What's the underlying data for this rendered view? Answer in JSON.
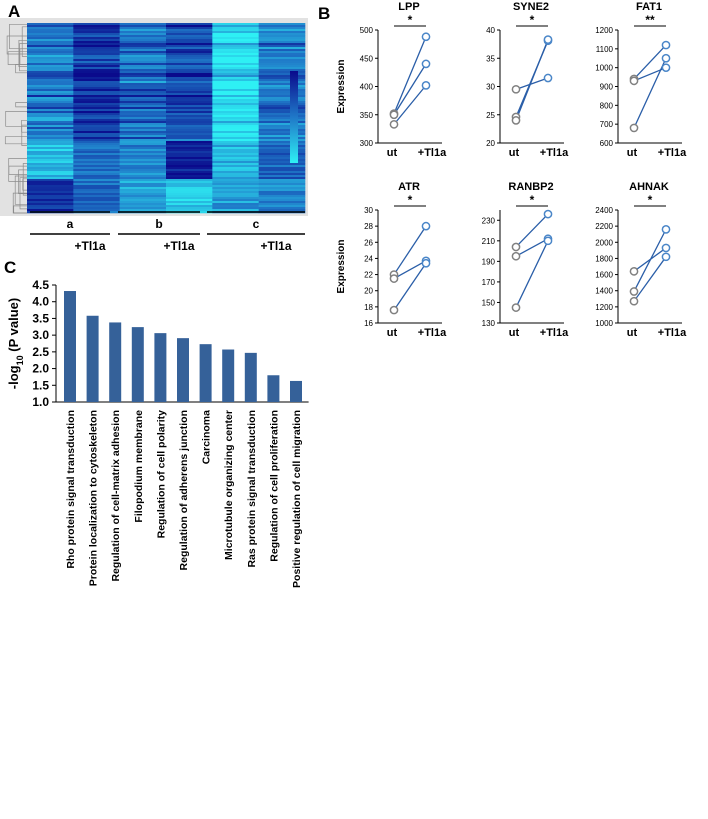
{
  "panels": {
    "a": "A",
    "b": "B",
    "c": "C"
  },
  "colors": {
    "open": "#808080",
    "treated": "#4a86c8",
    "line": "#2a5ea8",
    "bar": "#356199",
    "heat_low": "#2ef0f4",
    "heat_high": "#0a0a8c",
    "tree": "#8c8c8c"
  },
  "heatmap": {
    "groups": [
      {
        "label": "a",
        "treatment": "+Tl1a"
      },
      {
        "label": "b",
        "treatment": "+Tl1a"
      },
      {
        "label": "c",
        "treatment": "+Tl1a"
      }
    ]
  },
  "chart_data": [
    {
      "type": "line",
      "panel": "B",
      "title": "LPP",
      "ylabel": "Expression",
      "categories": [
        "ut",
        "+Tl1a"
      ],
      "ylim": [
        300,
        500
      ],
      "yticks": [
        300,
        350,
        400,
        450,
        500
      ],
      "significance": "*",
      "pairs": [
        [
          352,
          488
        ],
        [
          350,
          440
        ],
        [
          333,
          402
        ]
      ]
    },
    {
      "type": "line",
      "panel": "B",
      "title": "SYNE2",
      "ylabel": "",
      "categories": [
        "ut",
        "+Tl1a"
      ],
      "ylim": [
        20,
        40
      ],
      "yticks": [
        20,
        25,
        30,
        35,
        40
      ],
      "significance": "*",
      "pairs": [
        [
          29.5,
          31.5
        ],
        [
          24.6,
          38.1
        ],
        [
          24.0,
          38.3
        ]
      ]
    },
    {
      "type": "line",
      "panel": "B",
      "title": "FAT1",
      "ylabel": "",
      "categories": [
        "ut",
        "+Tl1a"
      ],
      "ylim": [
        600,
        1200
      ],
      "yticks": [
        600,
        700,
        800,
        900,
        1000,
        1100,
        1200
      ],
      "significance": "**",
      "pairs": [
        [
          940,
          1120
        ],
        [
          930,
          1000
        ],
        [
          680,
          1050
        ]
      ]
    },
    {
      "type": "line",
      "panel": "B",
      "title": "ATR",
      "ylabel": "Expression",
      "categories": [
        "ut",
        "+Tl1a"
      ],
      "ylim": [
        16,
        30
      ],
      "yticks": [
        16,
        18,
        20,
        22,
        24,
        26,
        28,
        30
      ],
      "significance": "*",
      "pairs": [
        [
          22.0,
          28.0
        ],
        [
          21.5,
          23.7
        ],
        [
          17.6,
          23.4
        ]
      ]
    },
    {
      "type": "line",
      "panel": "B",
      "title": "RANBP2",
      "ylabel": "",
      "categories": [
        "ut",
        "+Tl1a"
      ],
      "ylim": [
        130,
        240
      ],
      "yticks": [
        130,
        150,
        170,
        190,
        210,
        230
      ],
      "significance": "*",
      "pairs": [
        [
          204,
          236
        ],
        [
          195,
          212
        ],
        [
          145,
          210
        ]
      ]
    },
    {
      "type": "line",
      "panel": "B",
      "title": "AHNAK",
      "ylabel": "",
      "categories": [
        "ut",
        "+Tl1a"
      ],
      "ylim": [
        1000,
        2400
      ],
      "yticks": [
        1000,
        1200,
        1400,
        1600,
        1800,
        2000,
        2200,
        2400
      ],
      "significance": "*",
      "pairs": [
        [
          1640,
          1930
        ],
        [
          1390,
          2160
        ],
        [
          1270,
          1820
        ]
      ]
    },
    {
      "type": "bar",
      "panel": "C",
      "ylabel": "-log10 (P value)",
      "ylabel_parts": [
        "-log",
        "10",
        " (P value)"
      ],
      "ylim": [
        1.0,
        4.5
      ],
      "yticks": [
        "1.0",
        "1.5",
        "2.0",
        "2.5",
        "3.0",
        "3.5",
        "4.0",
        "4.5"
      ],
      "categories": [
        "Rho protein signal transduction",
        "Protein localization to cytoskeleton",
        "Regulation of cell-matrix adhesion",
        "Filopodium membrane",
        "Regulation of cell polarity",
        "Regulation of adherens junction",
        "Carcinoma",
        "Microtubule organizing center",
        "Ras protein signal transduction",
        "Regulation of cell proliferation",
        "Positive regulation of cell migration"
      ],
      "values": [
        4.32,
        3.58,
        3.38,
        3.24,
        3.06,
        2.91,
        2.73,
        2.57,
        2.47,
        1.8,
        1.63
      ]
    }
  ]
}
